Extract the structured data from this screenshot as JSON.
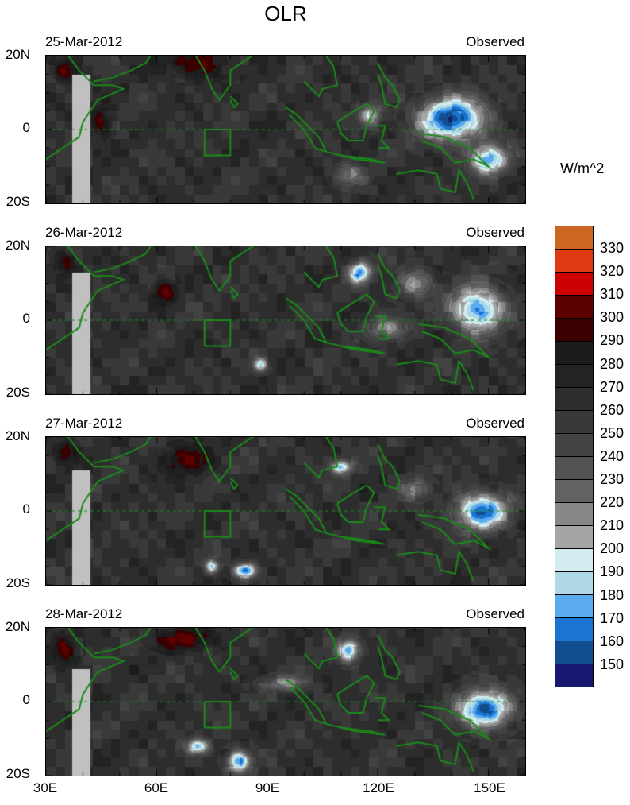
{
  "title": "OLR",
  "units": "W/m^2",
  "panels": [
    {
      "date": "25-Mar-2012",
      "label": "Observed"
    },
    {
      "date": "26-Mar-2012",
      "label": "Observed"
    },
    {
      "date": "27-Mar-2012",
      "label": "Observed"
    },
    {
      "date": "28-Mar-2012",
      "label": "Observed"
    }
  ],
  "y_ticks": [
    "20N",
    "0",
    "20S"
  ],
  "x_ticks": [
    "30E",
    "60E",
    "90E",
    "120E",
    "150E"
  ],
  "colorbar": {
    "labels": [
      "330",
      "320",
      "310",
      "300",
      "290",
      "280",
      "270",
      "260",
      "250",
      "240",
      "230",
      "220",
      "210",
      "200",
      "190",
      "180",
      "170",
      "160",
      "150"
    ],
    "colors": [
      "#cc6622",
      "#e03a12",
      "#cc0000",
      "#5c0000",
      "#3a0000",
      "#1c1c1c",
      "#232323",
      "#2d2d2d",
      "#393939",
      "#434343",
      "#525252",
      "#626262",
      "#878787",
      "#a5a5a5",
      "#d2ecef",
      "#aed8e6",
      "#5aaaee",
      "#1a74d0",
      "#124d8e",
      "#181870"
    ]
  },
  "chart_data": {
    "type": "heatmap",
    "title": "OLR",
    "units": "W/m^2",
    "xlim": [
      30,
      160
    ],
    "ylim": [
      -20,
      20
    ],
    "x_ticks": [
      30,
      60,
      90,
      120,
      150
    ],
    "y_ticks": [
      20,
      0,
      -20
    ],
    "levels": [
      150,
      160,
      170,
      180,
      190,
      200,
      210,
      220,
      230,
      240,
      250,
      260,
      270,
      280,
      290,
      300,
      310,
      320,
      330
    ],
    "panels": [
      "25-Mar-2012",
      "26-Mar-2012",
      "27-Mar-2012",
      "28-Mar-2012"
    ]
  }
}
